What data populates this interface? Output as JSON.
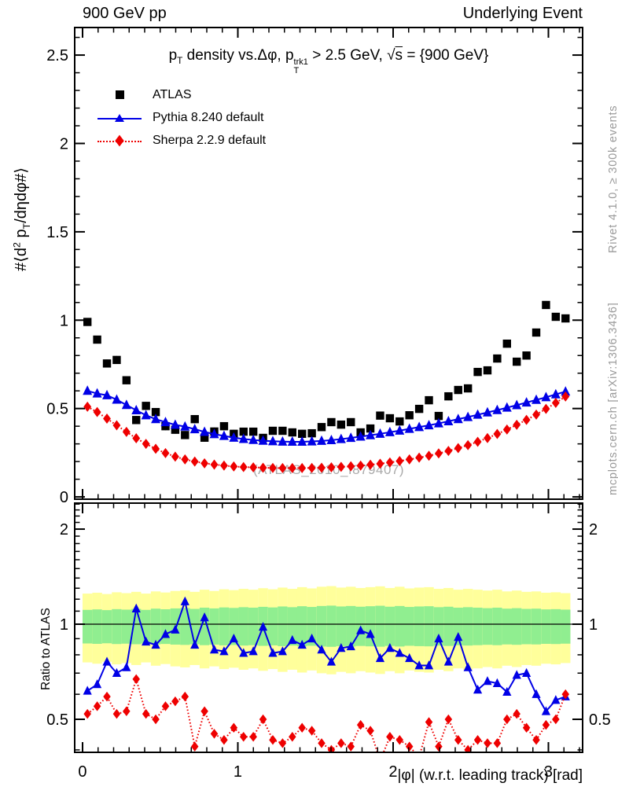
{
  "header": {
    "left": "900 GeV pp",
    "right": "Underlying Event"
  },
  "right_margin": {
    "top": "Rivet 4.1.0, ≥ 300k events",
    "bottom": "mcplots.cern.ch [arXiv:1306.3436]"
  },
  "watermark": "(ATLAS_2010_I879407)",
  "title_segments": [
    {
      "t": "p"
    },
    {
      "sub": "T"
    },
    {
      "t": " density vs.Δφ, p"
    },
    {
      "stack_sup": "trk1",
      "stack_sub": "T"
    },
    {
      "t": " > 2.5 GeV, "
    },
    {
      "t": "√"
    },
    {
      "t": "s",
      "s": "ol"
    },
    {
      "t": " = {900 GeV}"
    }
  ],
  "ylabel_main_segments": [
    {
      "t": "#⟨d"
    },
    {
      "t": "2",
      "s": "sup"
    },
    {
      "t": " p"
    },
    {
      "sub": "T"
    },
    {
      "t": "/dηdφ#⟩"
    }
  ],
  "legend": {
    "items": [
      {
        "label": "ATLAS",
        "marker": "square",
        "color": "#000000"
      },
      {
        "label": "Pythia 8.240 default",
        "marker": "triangle",
        "line": "solid",
        "color": "#0000e6"
      },
      {
        "label": "Sherpa 2.2.9 default",
        "marker": "diamond",
        "line": "dotted",
        "color": "#ee0000"
      }
    ]
  },
  "colors": {
    "pythia": "#0000e6",
    "sherpa": "#ee0000",
    "atlas": "#000000",
    "band_green": "#90ee90",
    "band_yellow": "#ffff9b",
    "frame": "#000000",
    "gray_text": "#9a9a9a",
    "watermark": "#a9a9a9"
  },
  "axes": {
    "x": {
      "min": -0.0506,
      "max": 3.2203,
      "majors": [
        0,
        1,
        2,
        3
      ],
      "labels": [
        "0",
        "1",
        "2",
        "3"
      ],
      "minor_step": 0.1,
      "label": "|φ| (w.r.t. leading track) [rad]"
    },
    "y_main": {
      "min": -0.013,
      "max": 2.656,
      "majors": [
        0,
        0.5,
        1,
        1.5,
        2,
        2.5
      ],
      "labels": [
        "0",
        "0.5",
        "1",
        "1.5",
        "2",
        "2.5"
      ],
      "minor_step": 0.1
    },
    "y_ratio": {
      "min": 0.393,
      "max": 2.417,
      "scale": "log",
      "majors": [
        0.5,
        1,
        2
      ],
      "labels": [
        "0.5",
        "1",
        "2"
      ],
      "minors": [
        0.4,
        0.6,
        0.7,
        0.8,
        0.9,
        1.1,
        1.2,
        1.3,
        1.4,
        1.5,
        1.6,
        1.7,
        1.8,
        1.9,
        2.1,
        2.2,
        2.3,
        2.4
      ],
      "label": "Ratio to ATLAS"
    }
  },
  "chart_data": [
    {
      "type": "scatter",
      "panel": "main",
      "title": "p_T density vs. Δφ, p_T^trk1 > 2.5 GeV, sqrt(s) = {900 GeV}",
      "xlabel": "|φ| (w.r.t. leading track) [rad]",
      "ylabel": "#<d^2 p_T/dηdφ#>",
      "bins": 50,
      "x_range": [
        0,
        3.14159
      ],
      "ylim": [
        0,
        2.656
      ],
      "series": [
        {
          "name": "ATLAS",
          "marker": "square",
          "color": "#000000",
          "values": [
            0.99,
            0.89,
            0.755,
            0.775,
            0.66,
            0.435,
            0.515,
            0.48,
            0.4,
            0.38,
            0.35,
            0.44,
            0.335,
            0.37,
            0.4,
            0.357,
            0.369,
            0.369,
            0.334,
            0.374,
            0.374,
            0.365,
            0.357,
            0.36,
            0.395,
            0.423,
            0.409,
            0.423,
            0.365,
            0.387,
            0.46,
            0.445,
            0.427,
            0.462,
            0.498,
            0.547,
            0.458,
            0.569,
            0.605,
            0.614,
            0.707,
            0.716,
            0.783,
            0.867,
            0.765,
            0.8,
            0.93,
            1.086,
            1.019,
            1.01
          ]
        },
        {
          "name": "Pythia 8.240 default",
          "marker": "triangle",
          "line": "solid",
          "color": "#0000e6",
          "values": [
            0.6,
            0.585,
            0.575,
            0.55,
            0.52,
            0.49,
            0.462,
            0.44,
            0.423,
            0.408,
            0.398,
            0.383,
            0.368,
            0.355,
            0.345,
            0.335,
            0.328,
            0.322,
            0.318,
            0.315,
            0.313,
            0.312,
            0.312,
            0.314,
            0.317,
            0.321,
            0.327,
            0.334,
            0.341,
            0.349,
            0.357,
            0.366,
            0.375,
            0.385,
            0.395,
            0.405,
            0.416,
            0.428,
            0.44,
            0.452,
            0.465,
            0.478,
            0.491,
            0.505,
            0.519,
            0.534,
            0.549,
            0.564,
            0.58,
            0.596
          ]
        },
        {
          "name": "Sherpa 2.2.9 default",
          "marker": "diamond",
          "line": "dotted",
          "color": "#ee0000",
          "values": [
            0.51,
            0.48,
            0.443,
            0.405,
            0.368,
            0.332,
            0.3,
            0.272,
            0.248,
            0.228,
            0.212,
            0.2,
            0.19,
            0.183,
            0.177,
            0.172,
            0.169,
            0.167,
            0.165,
            0.164,
            0.163,
            0.163,
            0.163,
            0.164,
            0.165,
            0.167,
            0.17,
            0.173,
            0.177,
            0.182,
            0.188,
            0.195,
            0.203,
            0.212,
            0.222,
            0.233,
            0.246,
            0.26,
            0.276,
            0.293,
            0.312,
            0.333,
            0.356,
            0.381,
            0.408,
            0.436,
            0.466,
            0.498,
            0.532,
            0.568
          ]
        }
      ]
    },
    {
      "type": "ratio",
      "panel": "ratio",
      "ylabel": "Ratio to ATLAS",
      "bins": 50,
      "x_range": [
        0,
        3.14159
      ],
      "ylim": [
        0.393,
        2.417
      ],
      "reference": 1,
      "series": [
        {
          "name": "Pythia 8.240 default / ATLAS",
          "marker": "triangle",
          "line": "solid",
          "color": "#0000e6",
          "values": [
            0.615,
            0.645,
            0.76,
            0.7,
            0.73,
            1.12,
            0.88,
            0.86,
            0.93,
            0.96,
            1.18,
            0.86,
            1.05,
            0.83,
            0.82,
            0.9,
            0.81,
            0.82,
            0.98,
            0.81,
            0.82,
            0.89,
            0.86,
            0.9,
            0.83,
            0.76,
            0.84,
            0.85,
            0.955,
            0.93,
            0.78,
            0.84,
            0.81,
            0.78,
            0.74,
            0.74,
            0.9,
            0.76,
            0.91,
            0.73,
            0.62,
            0.66,
            0.65,
            0.61,
            0.69,
            0.7,
            0.6,
            0.53,
            0.575,
            0.59
          ]
        },
        {
          "name": "Sherpa 2.2.9 default / ATLAS",
          "marker": "diamond",
          "line": "dotted",
          "color": "#ee0000",
          "values": [
            0.52,
            0.55,
            0.59,
            0.52,
            0.53,
            0.67,
            0.52,
            0.5,
            0.55,
            0.57,
            0.59,
            0.41,
            0.53,
            0.45,
            0.43,
            0.47,
            0.44,
            0.44,
            0.5,
            0.43,
            0.42,
            0.44,
            0.47,
            0.46,
            0.42,
            0.4,
            0.42,
            0.41,
            0.48,
            0.46,
            0.37,
            0.44,
            0.43,
            0.41,
            0.38,
            0.49,
            0.41,
            0.5,
            0.43,
            0.4,
            0.43,
            0.42,
            0.42,
            0.5,
            0.52,
            0.47,
            0.43,
            0.48,
            0.5,
            0.6
          ]
        }
      ],
      "bands": {
        "description": "uncertainty bands around ratio 1: inner green, outer yellow",
        "green_base": [
          0.875,
          1.1
        ],
        "yellow_base": [
          0.775,
          1.23
        ],
        "jitter": [
          0.01,
          0.014,
          0.008,
          0.016,
          0.012,
          0.018,
          0.01,
          0.02,
          0.015,
          0.022,
          0.025,
          0.018,
          0.028,
          0.022,
          0.03,
          0.026,
          0.032,
          0.028,
          0.035,
          0.03,
          0.038,
          0.032,
          0.04,
          0.034,
          0.042,
          0.045,
          0.038,
          0.042,
          0.036,
          0.04,
          0.044,
          0.036,
          0.042,
          0.034,
          0.038,
          0.04,
          0.032,
          0.036,
          0.028,
          0.032,
          0.028,
          0.024,
          0.028,
          0.02,
          0.024,
          0.018,
          0.02,
          0.014,
          0.016,
          0.012
        ]
      }
    }
  ]
}
